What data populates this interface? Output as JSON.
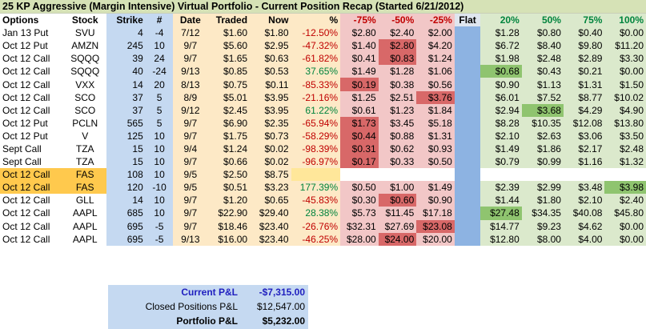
{
  "title": "25 KP Aggressive (Margin Intensive) Virtual Portfolio - Current Position Recap (Started 6/21/2012)",
  "headers": [
    "Options",
    "Stock",
    "Strike",
    "#",
    "Date",
    "Traded",
    "Now",
    "%",
    "-75%",
    "-50%",
    "-25%",
    "Flat",
    "20%",
    "50%",
    "75%",
    "100%"
  ],
  "rows": [
    [
      "Jan 13 Put",
      "SVU",
      "4",
      "-4",
      "7/12",
      "$1.60",
      "$1.80",
      "-12.50%",
      "$2.80",
      "$2.40",
      "$2.00",
      "",
      "$1.28",
      "$0.80",
      "$0.40",
      "$0.00"
    ],
    [
      "Oct 12 Put",
      "AMZN",
      "245",
      "10",
      "9/7",
      "$5.60",
      "$2.95",
      "-47.32%",
      "$1.40",
      "$2.80",
      "$4.20",
      "",
      "$6.72",
      "$8.40",
      "$9.80",
      "$11.20"
    ],
    [
      "Oct 12 Call",
      "SQQQ",
      "39",
      "24",
      "9/7",
      "$1.65",
      "$0.63",
      "-61.82%",
      "$0.41",
      "$0.83",
      "$1.24",
      "",
      "$1.98",
      "$2.48",
      "$2.89",
      "$3.30"
    ],
    [
      "Oct 12 Call",
      "SQQQ",
      "40",
      "-24",
      "9/13",
      "$0.85",
      "$0.53",
      "37.65%",
      "$1.49",
      "$1.28",
      "$1.06",
      "",
      "$0.68",
      "$0.43",
      "$0.21",
      "$0.00"
    ],
    [
      "Oct 12 Call",
      "VXX",
      "14",
      "20",
      "8/13",
      "$0.75",
      "$0.11",
      "-85.33%",
      "$0.19",
      "$0.38",
      "$0.56",
      "",
      "$0.90",
      "$1.13",
      "$1.31",
      "$1.50"
    ],
    [
      "Oct 12 Call",
      "SCO",
      "37",
      "5",
      "8/9",
      "$5.01",
      "$3.95",
      "-21.16%",
      "$1.25",
      "$2.51",
      "$3.76",
      "",
      "$6.01",
      "$7.52",
      "$8.77",
      "$10.02"
    ],
    [
      "Oct 12 Call",
      "SCO",
      "37",
      "5",
      "9/12",
      "$2.45",
      "$3.95",
      "61.22%",
      "$0.61",
      "$1.23",
      "$1.84",
      "",
      "$2.94",
      "$3.68",
      "$4.29",
      "$4.90"
    ],
    [
      "Oct 12 Put",
      "PCLN",
      "565",
      "5",
      "9/7",
      "$6.90",
      "$2.35",
      "-65.94%",
      "$1.73",
      "$3.45",
      "$5.18",
      "",
      "$8.28",
      "$10.35",
      "$12.08",
      "$13.80"
    ],
    [
      "Oct 12 Put",
      "V",
      "125",
      "10",
      "9/7",
      "$1.75",
      "$0.73",
      "-58.29%",
      "$0.44",
      "$0.88",
      "$1.31",
      "",
      "$2.10",
      "$2.63",
      "$3.06",
      "$3.50"
    ],
    [
      "Sept Call",
      "TZA",
      "15",
      "10",
      "9/4",
      "$1.24",
      "$0.02",
      "-98.39%",
      "$0.31",
      "$0.62",
      "$0.93",
      "",
      "$1.49",
      "$1.86",
      "$2.17",
      "$2.48"
    ],
    [
      "Sept Call",
      "TZA",
      "15",
      "10",
      "9/7",
      "$0.66",
      "$0.02",
      "-96.97%",
      "$0.17",
      "$0.33",
      "$0.50",
      "",
      "$0.79",
      "$0.99",
      "$1.16",
      "$1.32"
    ],
    [
      "Oct 12 Call",
      "FAS",
      "108",
      "10",
      "9/5",
      "$2.50",
      "$8.75",
      "",
      "",
      "",
      "",
      "",
      "",
      "",
      "",
      ""
    ],
    [
      "Oct 12 Call",
      "FAS",
      "120",
      "-10",
      "9/5",
      "$0.51",
      "$3.23",
      "177.39%",
      "$0.50",
      "$1.00",
      "$1.49",
      "",
      "$2.39",
      "$2.99",
      "$3.48",
      "$3.98"
    ],
    [
      "Oct 12 Call",
      "GLL",
      "14",
      "10",
      "9/7",
      "$1.20",
      "$0.65",
      "-45.83%",
      "$0.30",
      "$0.60",
      "$0.90",
      "",
      "$1.44",
      "$1.80",
      "$2.10",
      "$2.40"
    ],
    [
      "Oct 12 Call",
      "AAPL",
      "685",
      "10",
      "9/7",
      "$22.90",
      "$29.40",
      "28.38%",
      "$5.73",
      "$11.45",
      "$17.18",
      "",
      "$27.48",
      "$34.35",
      "$40.08",
      "$45.80"
    ],
    [
      "Oct 12 Call",
      "AAPL",
      "695",
      "-5",
      "9/7",
      "$18.46",
      "$23.40",
      "-26.76%",
      "$32.31",
      "$27.69",
      "$23.08",
      "",
      "$14.77",
      "$9.23",
      "$4.62",
      "$0.00"
    ],
    [
      "Oct 12 Call",
      "AAPL",
      "695",
      "-5",
      "9/13",
      "$16.00",
      "$23.40",
      "-46.25%",
      "$28.00",
      "$24.00",
      "$20.00",
      "",
      "$12.80",
      "$8.00",
      "$4.00",
      "$0.00"
    ]
  ],
  "highlights": {
    "1-9": "red",
    "2-9": "red",
    "4-8": "red",
    "5-10": "red",
    "7-8": "red",
    "8-8": "red",
    "9-8": "red",
    "10-8": "red",
    "13-9": "red",
    "15-10": "red",
    "16-9": "red",
    "3-12": "dgreen",
    "6-13": "dgreen",
    "12-15": "dgreen",
    "14-12": "dgreen"
  },
  "gold_rows": [
    11,
    12
  ],
  "summary": {
    "current_label": "Current P&L",
    "current_value": "-$7,315.00",
    "closed_label": "Closed Positions P&L",
    "closed_value": "$12,547.00",
    "portfolio_label": "Portfolio P&L",
    "portfolio_value": "$5,232.00"
  }
}
